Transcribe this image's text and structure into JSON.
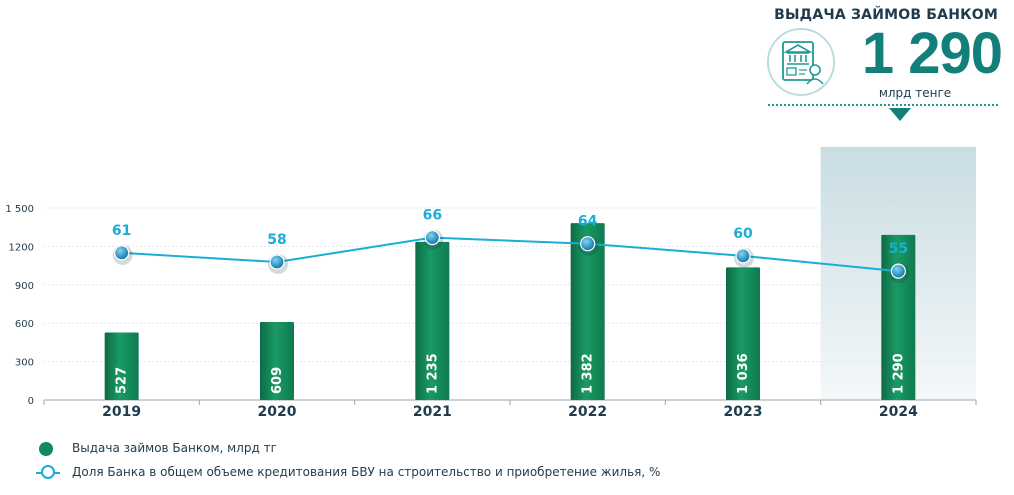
{
  "kpi": {
    "title": "ВЫДАЧА ЗАЙМОВ БАНКОМ",
    "value": "1 290",
    "unit": "млрд тенге",
    "icon": "bank-document-icon"
  },
  "chart_data": {
    "type": "bar",
    "categories": [
      "2019",
      "2020",
      "2021",
      "2022",
      "2023",
      "2024"
    ],
    "series": [
      {
        "name": "Выдача займов Банком, млрд тг",
        "type": "bar",
        "values": [
          527,
          609,
          1235,
          1382,
          1036,
          1290
        ],
        "labels": [
          "527",
          "609",
          "1 235",
          "1 382",
          "1 036",
          "1 290"
        ]
      },
      {
        "name": "Доля Банка в общем объеме кредитования БВУ на строительство и приобретение жилья, %",
        "type": "line",
        "values": [
          61,
          58,
          66,
          64,
          60,
          55
        ]
      }
    ],
    "yticks": [
      "0",
      "300",
      "600",
      "900",
      "1200",
      "1 500"
    ],
    "ylim": [
      0,
      1500
    ],
    "highlight_category": "2024",
    "colors": {
      "bar": "#138a5e",
      "line": "#1aaed6",
      "axis_text": "#1f3b4d"
    }
  },
  "legend": {
    "bars": "Выдача займов Банком, млрд тг",
    "line": "Доля Банка в общем объеме кредитования БВУ на строительство и приобретение жилья, %"
  }
}
